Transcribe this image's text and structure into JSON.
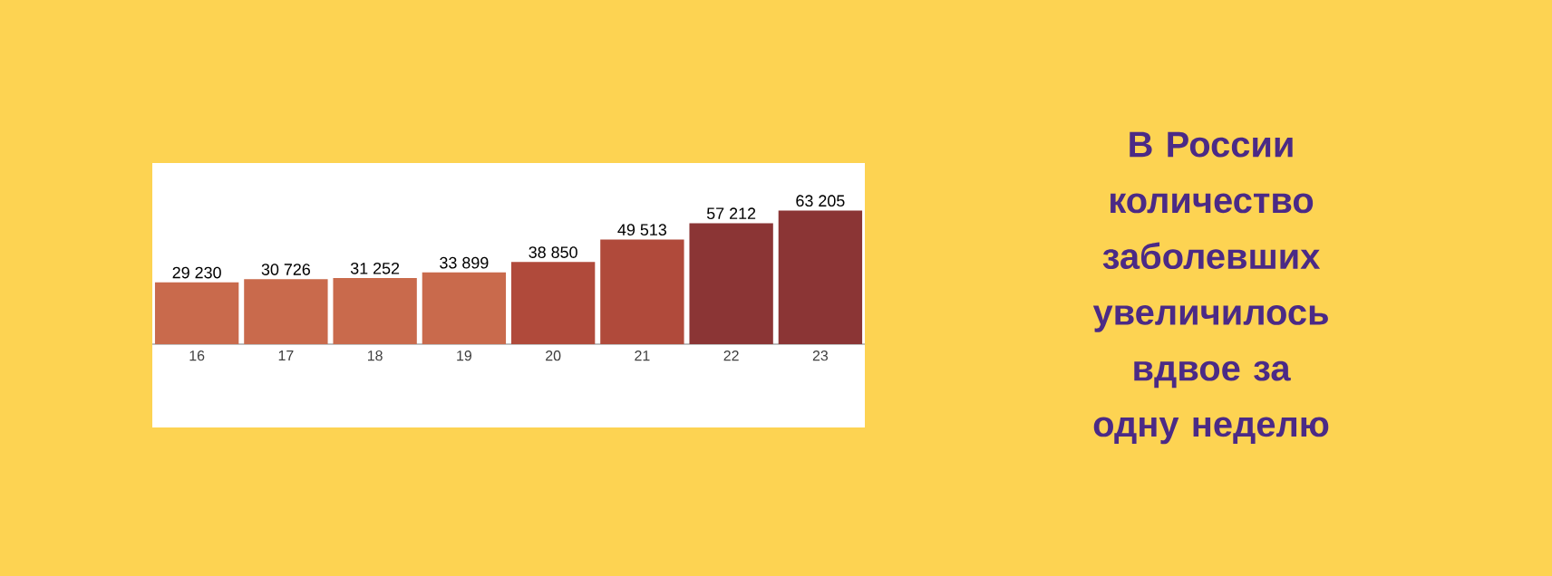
{
  "chart_data": {
    "type": "bar",
    "title": "В России количество заболевших увеличилось вдвое за одну неделю",
    "categories": [
      "16",
      "17",
      "18",
      "19",
      "20",
      "21",
      "22",
      "23"
    ],
    "values": [
      29230,
      30726,
      31252,
      33899,
      38850,
      49513,
      57212,
      63205
    ],
    "value_labels": [
      "29 230",
      "30 726",
      "31 252",
      "33 899",
      "38 850",
      "49 513",
      "57 212",
      "63 205"
    ],
    "colors": [
      "#c96a4c",
      "#c96a4c",
      "#c96a4c",
      "#c96a4c",
      "#b04a3b",
      "#b04a3b",
      "#8b3535",
      "#8b3535"
    ]
  }
}
